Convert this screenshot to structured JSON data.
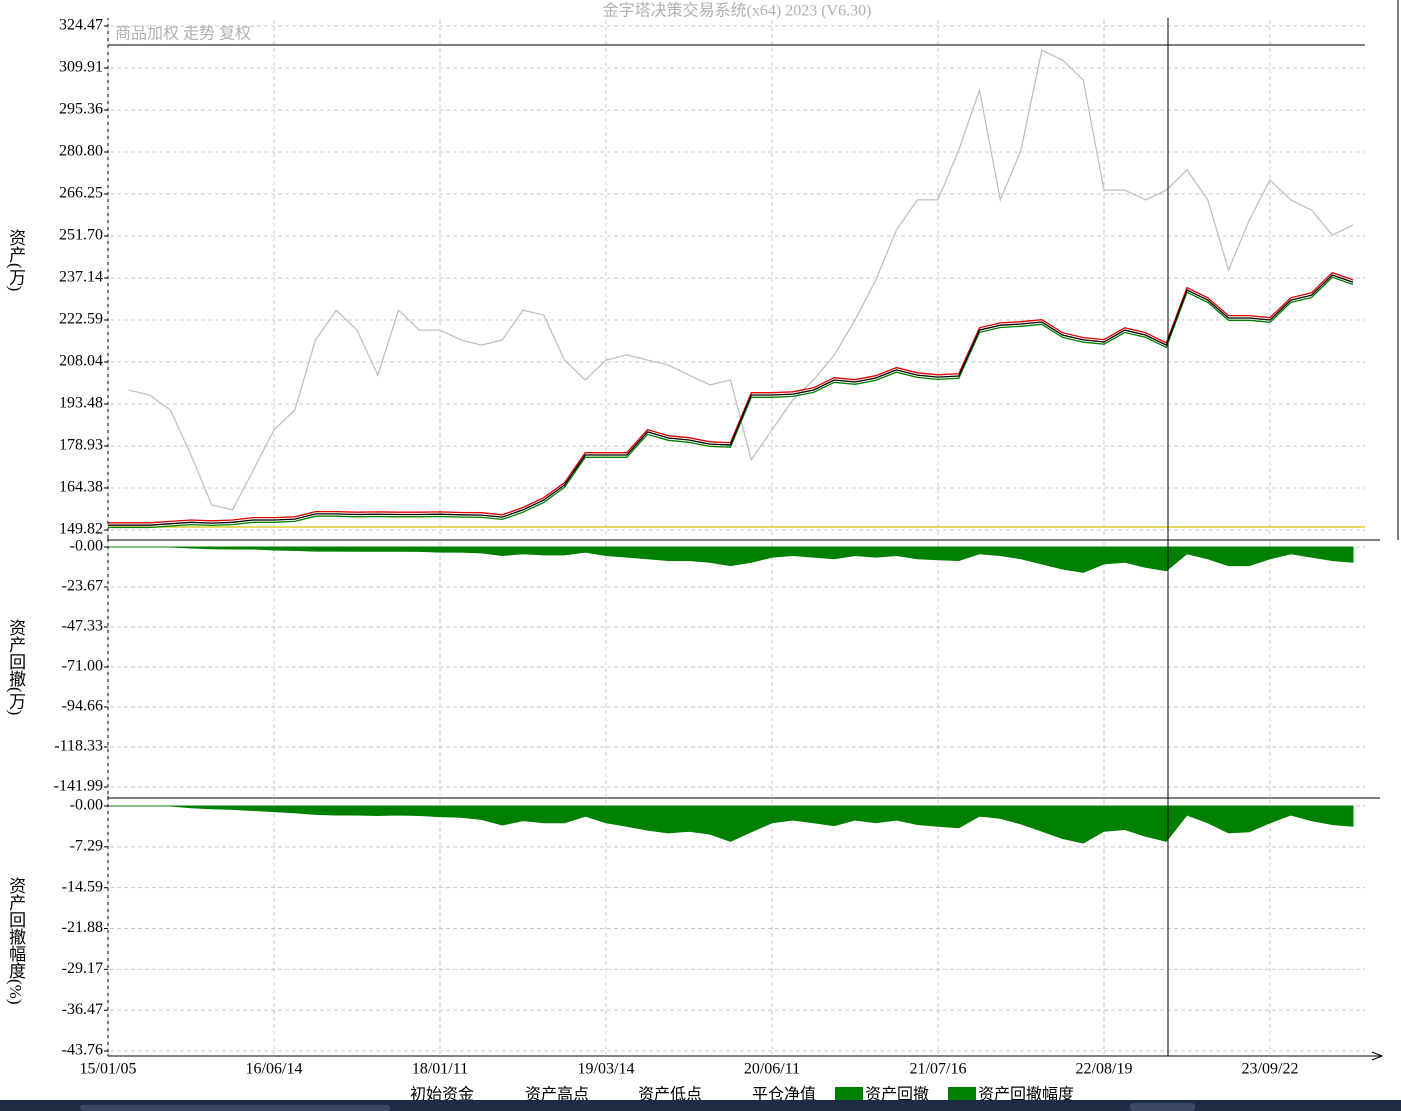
{
  "chart_data": [
    {
      "type": "line",
      "title": "金字塔决策交易系统(x64) 2023 (V6.30)",
      "ylabel": "资产(万)",
      "grid": true,
      "ylim": [
        149.82,
        324.47
      ],
      "yticks": [
        149.82,
        164.38,
        178.93,
        193.48,
        208.04,
        222.59,
        237.14,
        {
          "value": 251.7,
          "label": "251.70"
        },
        266.25,
        {
          "value": 280.8,
          "label": "280.80"
        },
        295.36,
        309.91,
        324.47
      ],
      "reference": {
        "name": "商品加权 走势 复权",
        "color": "#c0c0c0",
        "values": [
          null,
          198.3,
          196.6,
          191.4,
          175.8,
          158.5,
          156.8,
          170.6,
          184.5,
          191.4,
          215.7,
          226,
          219.1,
          203.5,
          226,
          219.1,
          219.1,
          215.7,
          213.9,
          215.7,
          226,
          224.3,
          208.7,
          201.8,
          208.7,
          210.5,
          208.7,
          207,
          203.5,
          200.1,
          201.8,
          174.1,
          184.5,
          194.9,
          201.8,
          210.5,
          222.6,
          236.4,
          253.8,
          264.2,
          264.2,
          281.5,
          302.3,
          264.2,
          281.5,
          316.1,
          312.7,
          305.7,
          267.6,
          267.6,
          264.2,
          267.6,
          274.6,
          264.2,
          239.9,
          257.2,
          271.1,
          264.2,
          260.7,
          252,
          255.5
        ]
      },
      "hline": {
        "name": "初始资金",
        "color": "#d4c400",
        "value": 150.86
      },
      "series": [
        {
          "name": "资产高点",
          "color": "#e00000",
          "values": [
            152.3,
            152.3,
            152.3,
            152.8,
            153.3,
            153,
            153.3,
            154.1,
            154.1,
            154.4,
            156.2,
            156.2,
            156,
            156.1,
            156,
            156,
            156.1,
            155.9,
            155.8,
            155.1,
            157.6,
            161,
            166.2,
            176.6,
            176.6,
            176.6,
            184.6,
            182.5,
            181.8,
            180.4,
            180.1,
            197.4,
            197.4,
            197.7,
            199.1,
            202.6,
            201.9,
            203.3,
            206.1,
            204.3,
            203.6,
            204,
            219.9,
            221.6,
            222,
            222.7,
            218.2,
            216.5,
            215.8,
            219.9,
            218.2,
            214.7,
            233.8,
            230.3,
            224.1,
            224.1,
            223.4,
            230.3,
            232,
            239,
            236.5
          ]
        },
        {
          "name": "资产低点",
          "color": "#008000",
          "values": [
            150.7,
            150.7,
            150.7,
            151.2,
            151.7,
            151.4,
            151.7,
            152.5,
            152.5,
            152.8,
            154.6,
            154.6,
            154.4,
            154.5,
            154.4,
            154.4,
            154.5,
            154.3,
            154.2,
            153.5,
            156,
            159.4,
            164.6,
            175,
            175,
            175,
            183,
            180.9,
            180.2,
            178.8,
            178.5,
            195.8,
            195.8,
            196.1,
            197.5,
            201,
            200.3,
            201.7,
            204.5,
            202.7,
            202,
            202.4,
            218.3,
            220,
            220.4,
            221.1,
            216.6,
            214.9,
            214.2,
            218.3,
            216.6,
            213.1,
            232.2,
            228.7,
            222.5,
            222.5,
            221.8,
            228.7,
            230.4,
            237.4,
            234.9
          ]
        },
        {
          "name": "平仓净值",
          "color": "#000000",
          "values": [
            151.5,
            151.5,
            151.5,
            152,
            152.5,
            152.2,
            152.5,
            153.3,
            153.3,
            153.6,
            155.4,
            155.4,
            155.2,
            155.3,
            155.2,
            155.2,
            155.3,
            155.1,
            155,
            154.3,
            156.8,
            160.2,
            165.4,
            175.8,
            175.8,
            175.8,
            183.8,
            181.7,
            181,
            179.6,
            179.3,
            196.6,
            196.6,
            196.9,
            198.3,
            201.8,
            201.1,
            202.5,
            205.3,
            203.5,
            202.8,
            203.2,
            219.1,
            220.8,
            221.2,
            221.9,
            217.4,
            215.7,
            215,
            219.1,
            217.4,
            213.9,
            233,
            229.5,
            223.3,
            223.3,
            222.6,
            229.5,
            231.2,
            238.2,
            235.7
          ]
        }
      ]
    },
    {
      "type": "area",
      "ylabel": "资产回撤(万)",
      "grid": true,
      "ylim": [
        -141.99,
        0
      ],
      "yticks": [
        {
          "value": 0,
          "label": "-0.00"
        },
        -23.67,
        -47.33,
        {
          "value": -71,
          "label": "-71.00"
        },
        -94.66,
        -118.33,
        -141.99
      ],
      "series": [
        {
          "name": "资产回撤",
          "color": "#008000",
          "values": [
            0,
            0,
            0,
            0,
            -0.6,
            -1,
            -1.2,
            -1.2,
            -1.8,
            -2,
            -2.4,
            -2.4,
            -2.5,
            -2.5,
            -2.5,
            -2.6,
            -3,
            -3,
            -3.5,
            -5,
            -4,
            -4.7,
            -4.7,
            -3,
            -5,
            -6,
            -7,
            -8,
            -8,
            -9,
            -11,
            -9,
            -6,
            -5,
            -6,
            -7,
            -5,
            -6,
            -5,
            -7,
            -7.5,
            -8,
            -4,
            -5,
            -7,
            -10,
            -13,
            -15,
            -10,
            -9,
            -12,
            -14,
            -4,
            -7,
            -11,
            -11,
            -7,
            -4,
            -6,
            -8,
            -9
          ]
        }
      ]
    },
    {
      "type": "area",
      "ylabel": "资产回撤幅度(%)",
      "grid": true,
      "ylim": [
        -43.76,
        0
      ],
      "yticks": [
        {
          "value": 0,
          "label": "-0.00"
        },
        -7.29,
        -14.59,
        -21.88,
        -29.17,
        -36.47,
        -43.76
      ],
      "categories": [
        "15/01/05",
        null,
        null,
        null,
        null,
        null,
        null,
        null,
        "16/06/14",
        null,
        null,
        null,
        null,
        null,
        null,
        null,
        "18/01/11",
        null,
        null,
        null,
        null,
        null,
        null,
        null,
        "19/03/14",
        null,
        null,
        null,
        null,
        null,
        null,
        null,
        "20/06/11",
        null,
        null,
        null,
        null,
        null,
        null,
        null,
        "21/07/16",
        null,
        null,
        null,
        null,
        null,
        null,
        null,
        "22/08/19",
        null,
        null,
        null,
        null,
        null,
        null,
        null,
        "23/09/22",
        null,
        null,
        null,
        null
      ],
      "series": [
        {
          "name": "资产回撤幅度",
          "color": "#008000",
          "values": [
            0,
            0,
            0,
            0,
            -0.3,
            -0.5,
            -0.6,
            -0.8,
            -1,
            -1.2,
            -1.5,
            -1.6,
            -1.6,
            -1.7,
            -1.6,
            -1.7,
            -1.9,
            -2,
            -2.4,
            -3.4,
            -2.6,
            -3,
            -3,
            -1.8,
            -3,
            -3.6,
            -4.3,
            -4.8,
            -4.5,
            -5,
            -6.3,
            -4.6,
            -3,
            -2.5,
            -3,
            -3.5,
            -2.5,
            -3,
            -2.5,
            -3.3,
            -3.6,
            -3.9,
            -1.8,
            -2.2,
            -3.2,
            -4.5,
            -5.8,
            -6.6,
            -4.5,
            -4.2,
            -5.4,
            -6.3,
            -1.6,
            -3,
            -4.8,
            -4.6,
            -3,
            -1.6,
            -2.6,
            -3.3,
            -3.6
          ]
        }
      ]
    }
  ]
}
